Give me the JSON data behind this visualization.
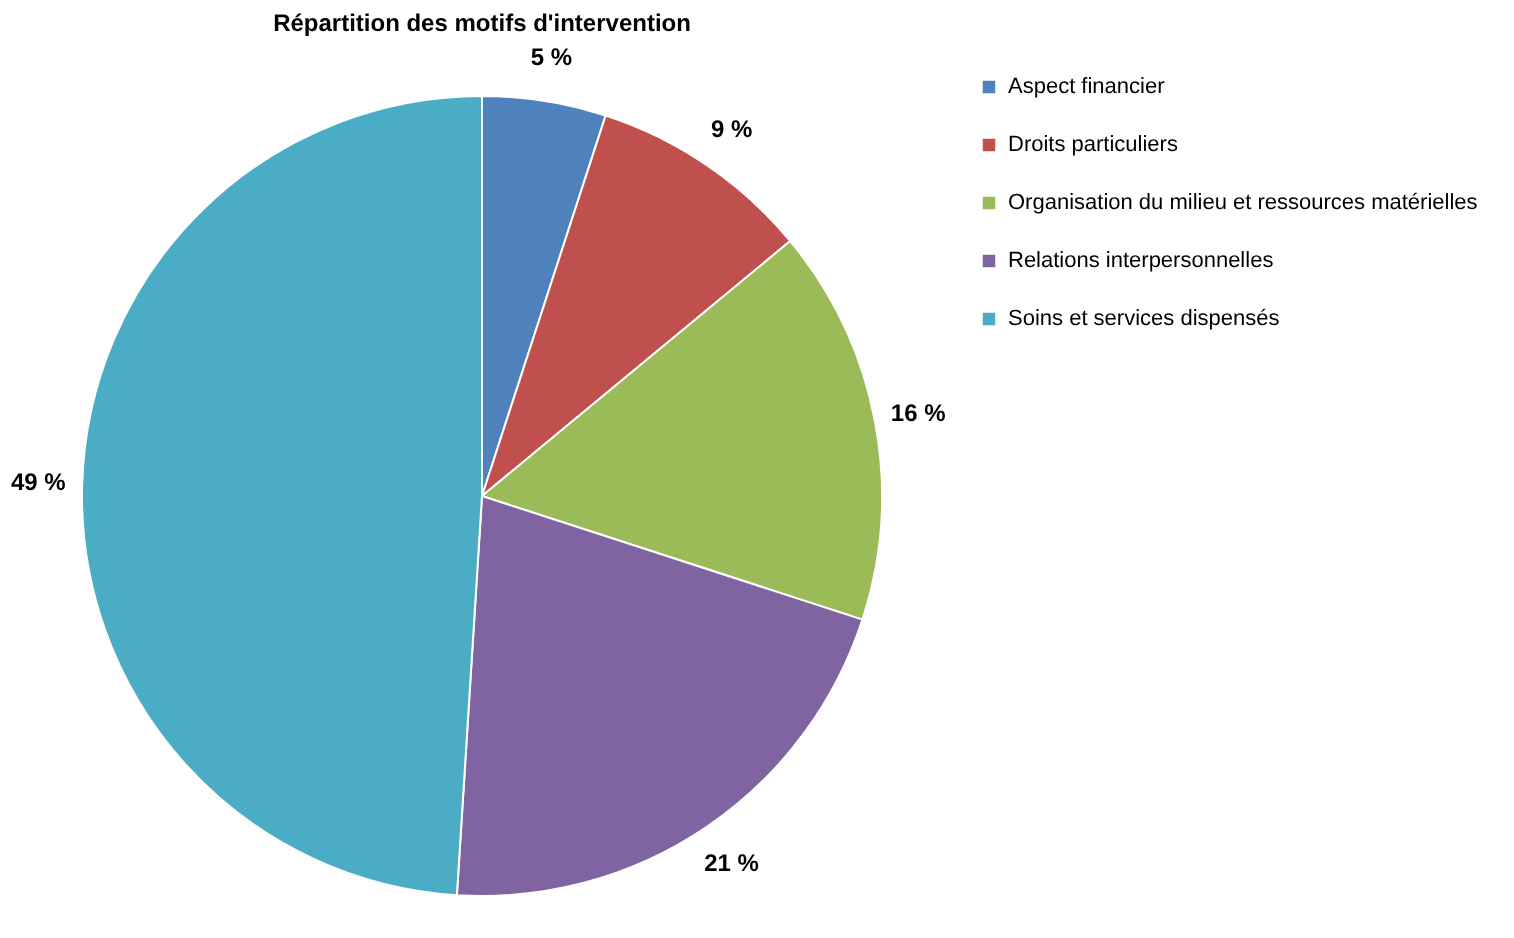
{
  "chart_data": {
    "type": "pie",
    "title": "Répartition des motifs d'intervention",
    "categories": [
      "Aspect financier",
      "Droits particuliers",
      "Organisation du milieu et ressources matérielles",
      "Relations interpersonnelles",
      "Soins et services dispensés"
    ],
    "values": [
      5,
      9,
      16,
      21,
      49
    ],
    "colors": [
      "#4f81bd",
      "#c0504d",
      "#9bbb59",
      "#8064a2",
      "#4bacc6"
    ],
    "value_labels": [
      "5 %",
      "9 %",
      "16 %",
      "21 %",
      "49 %"
    ],
    "legend": "right"
  }
}
